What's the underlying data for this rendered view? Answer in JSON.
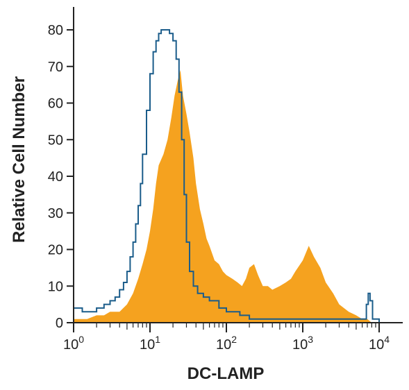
{
  "chart_data": {
    "type": "area",
    "xlabel": "DC-LAMP",
    "ylabel": "Relative Cell Number",
    "xscale": "log",
    "xlim": [
      1,
      10000
    ],
    "ylim": [
      0,
      80
    ],
    "grid": false,
    "legend": "none",
    "yticks": [
      "0",
      "10",
      "20",
      "30",
      "40",
      "50",
      "60",
      "70",
      "80"
    ],
    "xticks": [
      {
        "base": "10",
        "exp": "0"
      },
      {
        "base": "10",
        "exp": "1"
      },
      {
        "base": "10",
        "exp": "2"
      },
      {
        "base": "10",
        "exp": "3"
      },
      {
        "base": "10",
        "exp": "4"
      }
    ],
    "series": [
      {
        "style": "filled",
        "color": "#F5A21F",
        "points": [
          [
            1.0,
            1
          ],
          [
            1.5,
            1
          ],
          [
            2.0,
            2
          ],
          [
            2.5,
            2
          ],
          [
            3.0,
            3
          ],
          [
            3.5,
            3
          ],
          [
            4.0,
            3
          ],
          [
            5.0,
            5
          ],
          [
            6.0,
            8
          ],
          [
            7.0,
            12
          ],
          [
            8.0,
            16
          ],
          [
            9.0,
            20
          ],
          [
            10.0,
            25
          ],
          [
            11.0,
            31
          ],
          [
            12.0,
            38
          ],
          [
            13.0,
            43
          ],
          [
            15.0,
            46
          ],
          [
            17.0,
            50
          ],
          [
            19.0,
            56
          ],
          [
            21.0,
            62
          ],
          [
            23.0,
            66
          ],
          [
            25.0,
            69
          ],
          [
            27.0,
            62
          ],
          [
            30.0,
            57
          ],
          [
            33.0,
            52
          ],
          [
            37.0,
            45
          ],
          [
            40.0,
            38
          ],
          [
            45.0,
            31
          ],
          [
            50.0,
            27
          ],
          [
            55.0,
            23
          ],
          [
            60.0,
            21
          ],
          [
            70.0,
            17
          ],
          [
            80.0,
            16
          ],
          [
            90.0,
            14
          ],
          [
            100.0,
            13
          ],
          [
            120.0,
            12
          ],
          [
            140.0,
            11
          ],
          [
            160.0,
            10
          ],
          [
            180.0,
            12
          ],
          [
            200.0,
            15
          ],
          [
            230.0,
            16
          ],
          [
            260.0,
            13
          ],
          [
            300.0,
            10
          ],
          [
            350.0,
            10
          ],
          [
            400.0,
            9
          ],
          [
            500.0,
            10
          ],
          [
            600.0,
            11
          ],
          [
            700.0,
            12
          ],
          [
            800.0,
            14
          ],
          [
            1000.0,
            17
          ],
          [
            1200.0,
            21
          ],
          [
            1400.0,
            18
          ],
          [
            1700.0,
            15
          ],
          [
            2000.0,
            11
          ],
          [
            2500.0,
            8
          ],
          [
            3000.0,
            5
          ],
          [
            4000.0,
            3
          ],
          [
            5000.0,
            2
          ],
          [
            6000.0,
            1
          ],
          [
            7000.0,
            1
          ],
          [
            8000.0,
            0
          ]
        ]
      },
      {
        "style": "outline",
        "color": "#1A5C8A",
        "points": [
          [
            1.0,
            4
          ],
          [
            1.3,
            3
          ],
          [
            1.6,
            3
          ],
          [
            2.0,
            4
          ],
          [
            2.5,
            5
          ],
          [
            3.0,
            6
          ],
          [
            3.5,
            7
          ],
          [
            4.0,
            9
          ],
          [
            4.5,
            11
          ],
          [
            5.0,
            14
          ],
          [
            5.5,
            18
          ],
          [
            6.0,
            22
          ],
          [
            6.5,
            27
          ],
          [
            7.0,
            32
          ],
          [
            7.5,
            38
          ],
          [
            8.0,
            46
          ],
          [
            9.0,
            58
          ],
          [
            10.0,
            68
          ],
          [
            11.0,
            74
          ],
          [
            12.0,
            77
          ],
          [
            13.0,
            79
          ],
          [
            14.0,
            80
          ],
          [
            16.0,
            80
          ],
          [
            18.0,
            79
          ],
          [
            20.0,
            77
          ],
          [
            22.0,
            72
          ],
          [
            24.0,
            63
          ],
          [
            26.0,
            50
          ],
          [
            28.0,
            35
          ],
          [
            30.0,
            22
          ],
          [
            33.0,
            14
          ],
          [
            37.0,
            10
          ],
          [
            42.0,
            8
          ],
          [
            50.0,
            7
          ],
          [
            60.0,
            6
          ],
          [
            80.0,
            4
          ],
          [
            100.0,
            3
          ],
          [
            150.0,
            2
          ],
          [
            200.0,
            1
          ],
          [
            300.0,
            1
          ],
          [
            500.0,
            1
          ],
          [
            1000.0,
            1
          ],
          [
            2000.0,
            1
          ],
          [
            4000.0,
            1
          ],
          [
            6000.0,
            1
          ],
          [
            6800.0,
            5
          ],
          [
            7200.0,
            8
          ],
          [
            7600.0,
            6
          ],
          [
            8200.0,
            1
          ],
          [
            10000.0,
            0
          ]
        ]
      }
    ]
  }
}
